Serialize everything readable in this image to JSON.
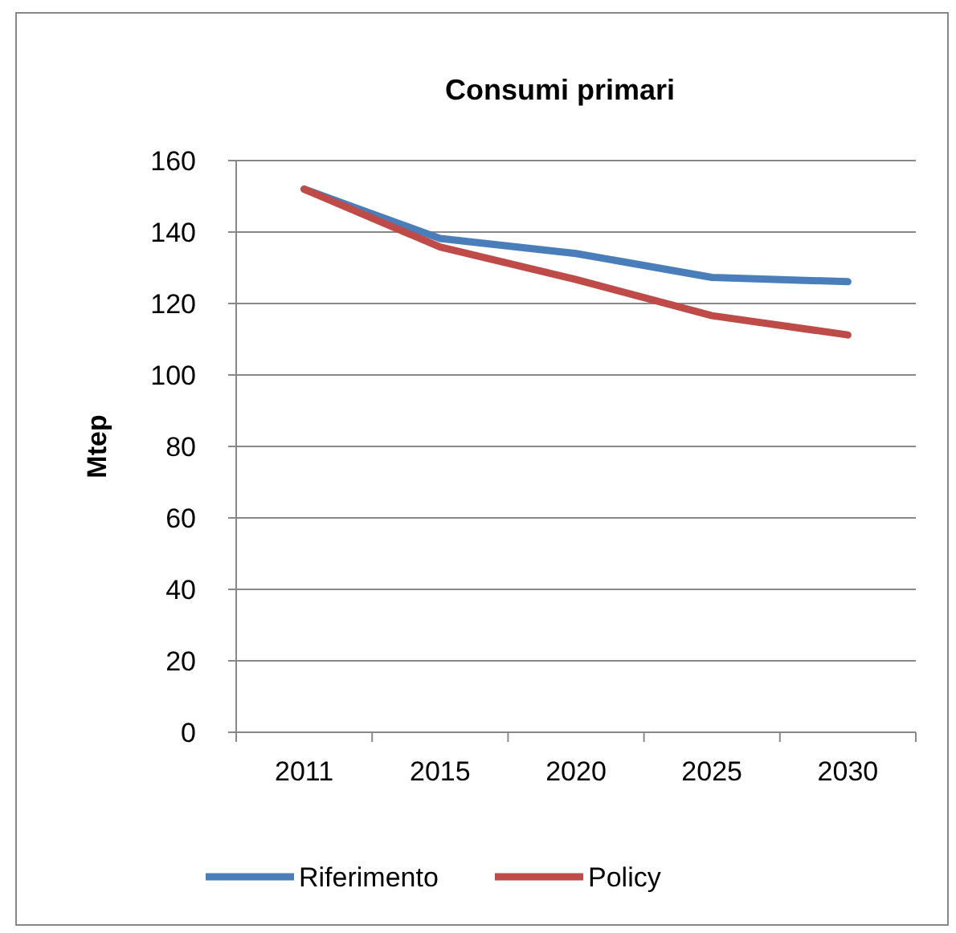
{
  "chart_data": {
    "type": "line",
    "title": "Consumi primari",
    "ylabel": "Mtep",
    "categories": [
      "2011",
      "2015",
      "2020",
      "2025",
      "2030"
    ],
    "series": [
      {
        "name": "Riferimento",
        "color": "#4a7ebb",
        "values": [
          152,
          138.2,
          134,
          127.3,
          126.1
        ]
      },
      {
        "name": "Policy",
        "color": "#be4b48",
        "values": [
          152,
          135.8,
          126.7,
          116.6,
          111.2
        ]
      }
    ],
    "ylim": [
      0,
      160
    ],
    "yticks": [
      0,
      20,
      40,
      60,
      80,
      100,
      120,
      140,
      160
    ],
    "grid": "y",
    "legend": "bottom",
    "marker": "none",
    "line_style": "solid"
  }
}
